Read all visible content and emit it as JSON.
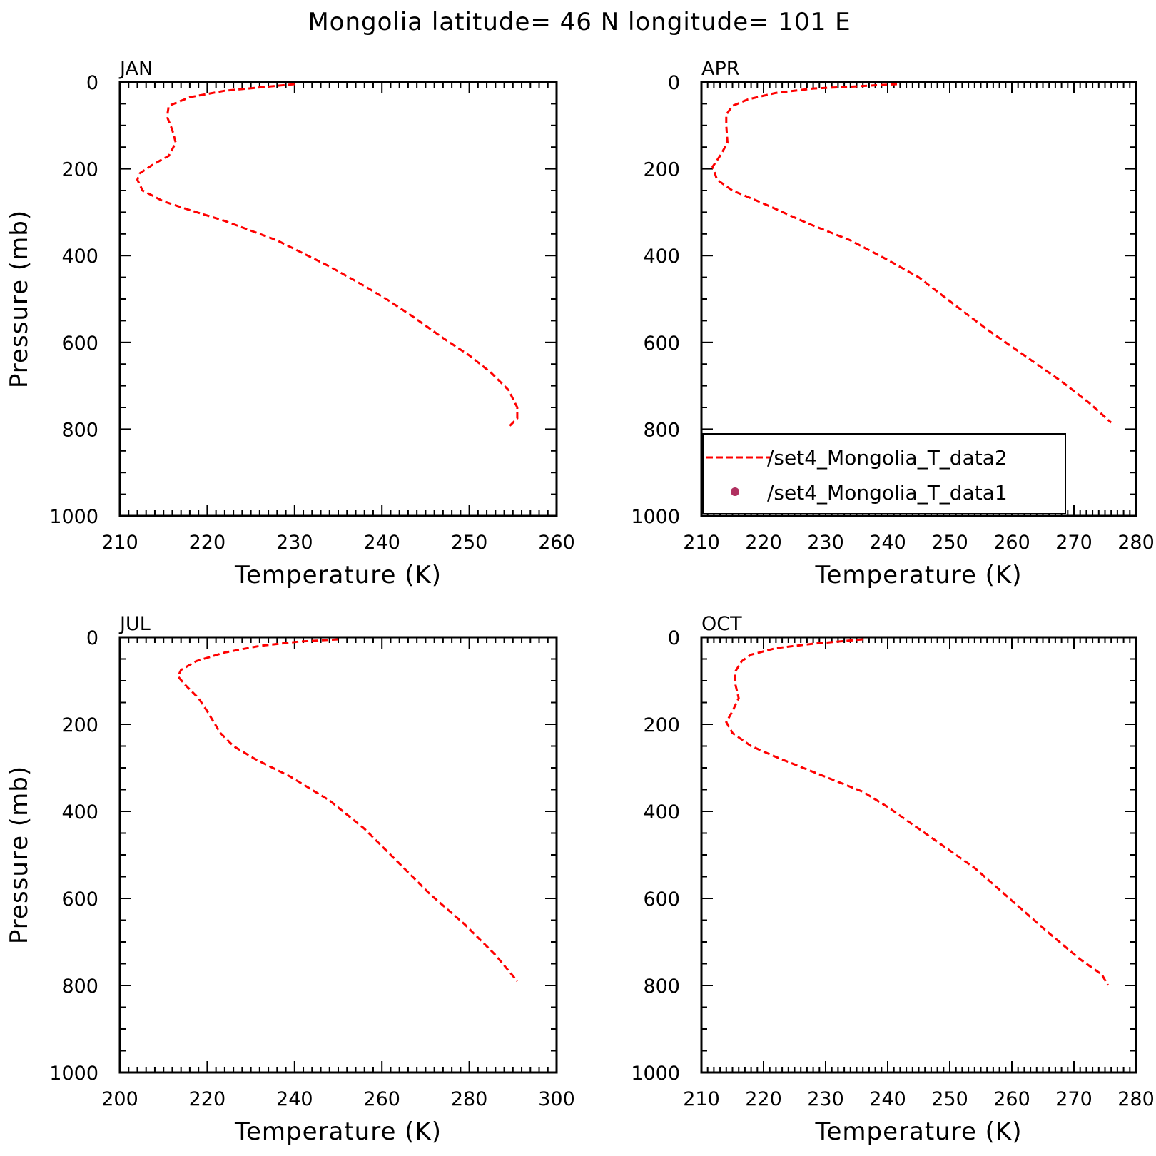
{
  "title": "Mongolia  latitude= 46 N longitude= 101 E",
  "colors": {
    "model_line": "#ff0000",
    "obs_marker": "#b03060",
    "axis": "#000000"
  },
  "legend": {
    "placement": "inside lower-left of APR panel",
    "entries": [
      {
        "label": "/set4_Mongolia_T_data2",
        "style": "dashed-line",
        "color": "#ff0000"
      },
      {
        "label": "/set4_Mongolia_T_data1",
        "style": "dot",
        "color": "#b03060"
      }
    ]
  },
  "chart_data": [
    {
      "type": "line",
      "panel": "JAN",
      "xlabel": "Temperature (K)",
      "ylabel": "Pressure (mb)",
      "xlim": [
        210,
        260
      ],
      "ylim": [
        1000,
        0
      ],
      "y_inverted": true,
      "xticks": [
        210,
        220,
        230,
        240,
        250,
        260
      ],
      "yticks": [
        0,
        200,
        400,
        600,
        800,
        1000
      ],
      "grid": false,
      "series": [
        {
          "name": "/set4_Mongolia_T_data2",
          "style": "dashed",
          "color": "#ff0000",
          "points": [
            [
              230.0,
              5
            ],
            [
              222.0,
              20
            ],
            [
              218.0,
              35
            ],
            [
              215.6,
              55
            ],
            [
              215.4,
              80
            ],
            [
              216.0,
              110
            ],
            [
              216.4,
              140
            ],
            [
              215.6,
              170
            ],
            [
              213.8,
              190
            ],
            [
              212.3,
              210
            ],
            [
              212.0,
              225
            ],
            [
              212.6,
              250
            ],
            [
              215.0,
              275
            ],
            [
              218.0,
              295
            ],
            [
              222.0,
              320
            ],
            [
              228.0,
              365
            ],
            [
              234.0,
              425
            ],
            [
              238.0,
              470
            ],
            [
              240.5,
              500
            ],
            [
              243.5,
              540
            ],
            [
              247.0,
              590
            ],
            [
              250.0,
              630
            ],
            [
              252.5,
              670
            ],
            [
              254.5,
              710
            ],
            [
              255.5,
              750
            ],
            [
              255.5,
              775
            ],
            [
              254.5,
              795
            ]
          ]
        },
        {
          "name": "/set4_Mongolia_T_data1",
          "style": "dot",
          "color": "#b03060",
          "points": []
        }
      ]
    },
    {
      "type": "line",
      "panel": "APR",
      "xlabel": "Temperature (K)",
      "ylabel": "",
      "xlim": [
        210,
        280
      ],
      "ylim": [
        1000,
        0
      ],
      "y_inverted": true,
      "xticks": [
        210,
        220,
        230,
        240,
        250,
        260,
        270,
        280
      ],
      "yticks": [
        0,
        200,
        400,
        600,
        800,
        1000
      ],
      "grid": false,
      "series": [
        {
          "name": "/set4_Mongolia_T_data2",
          "style": "dashed",
          "color": "#ff0000",
          "points": [
            [
              241.5,
              5
            ],
            [
              235.0,
              10
            ],
            [
              228.0,
              15
            ],
            [
              222.0,
              25
            ],
            [
              217.5,
              40
            ],
            [
              215.0,
              55
            ],
            [
              214.0,
              75
            ],
            [
              214.0,
              100
            ],
            [
              214.2,
              140
            ],
            [
              213.0,
              170
            ],
            [
              211.8,
              195
            ],
            [
              212.5,
              225
            ],
            [
              215.0,
              250
            ],
            [
              220.0,
              280
            ],
            [
              227.0,
              325
            ],
            [
              234.0,
              365
            ],
            [
              240.0,
              410
            ],
            [
              245.0,
              450
            ],
            [
              250.0,
              505
            ],
            [
              256.0,
              570
            ],
            [
              262.0,
              630
            ],
            [
              268.0,
              690
            ],
            [
              272.5,
              740
            ],
            [
              276.0,
              785
            ]
          ]
        },
        {
          "name": "/set4_Mongolia_T_data1",
          "style": "dot",
          "color": "#b03060",
          "points": []
        }
      ]
    },
    {
      "type": "line",
      "panel": "JUL",
      "xlabel": "Temperature (K)",
      "ylabel": "Pressure (mb)",
      "xlim": [
        200,
        300
      ],
      "ylim": [
        1000,
        0
      ],
      "y_inverted": true,
      "xticks": [
        200,
        220,
        240,
        260,
        280,
        300
      ],
      "yticks": [
        0,
        200,
        400,
        600,
        800,
        1000
      ],
      "grid": false,
      "series": [
        {
          "name": "/set4_Mongolia_T_data2",
          "style": "dashed",
          "color": "#ff0000",
          "points": [
            [
              250.0,
              5
            ],
            [
              241.0,
              10
            ],
            [
              232.0,
              20
            ],
            [
              224.0,
              35
            ],
            [
              217.5,
              55
            ],
            [
              214.0,
              75
            ],
            [
              213.3,
              90
            ],
            [
              215.0,
              110
            ],
            [
              218.0,
              140
            ],
            [
              220.0,
              170
            ],
            [
              221.5,
              195
            ],
            [
              223.0,
              220
            ],
            [
              226.0,
              250
            ],
            [
              231.0,
              280
            ],
            [
              239.0,
              320
            ],
            [
              248.0,
              375
            ],
            [
              256.0,
              440
            ],
            [
              264.0,
              520
            ],
            [
              271.0,
              590
            ],
            [
              279.0,
              660
            ],
            [
              286.0,
              730
            ],
            [
              291.0,
              790
            ]
          ]
        },
        {
          "name": "/set4_Mongolia_T_data1",
          "style": "dot",
          "color": "#b03060",
          "points": []
        }
      ]
    },
    {
      "type": "line",
      "panel": "OCT",
      "xlabel": "Temperature (K)",
      "ylabel": "",
      "xlim": [
        210,
        280
      ],
      "ylim": [
        1000,
        0
      ],
      "y_inverted": true,
      "xticks": [
        210,
        220,
        230,
        240,
        250,
        260,
        270,
        280
      ],
      "yticks": [
        0,
        200,
        400,
        600,
        800,
        1000
      ],
      "grid": false,
      "series": [
        {
          "name": "/set4_Mongolia_T_data2",
          "style": "dashed",
          "color": "#ff0000",
          "points": [
            [
              236.0,
              5
            ],
            [
              228.0,
              15
            ],
            [
              222.0,
              25
            ],
            [
              218.0,
              40
            ],
            [
              216.5,
              55
            ],
            [
              215.4,
              80
            ],
            [
              215.5,
              110
            ],
            [
              216.0,
              140
            ],
            [
              215.0,
              170
            ],
            [
              214.0,
              195
            ],
            [
              215.0,
              220
            ],
            [
              218.0,
              250
            ],
            [
              222.0,
              275
            ],
            [
              229.0,
              315
            ],
            [
              236.0,
              355
            ],
            [
              240.0,
              390
            ],
            [
              245.0,
              440
            ],
            [
              250.0,
              490
            ],
            [
              254.0,
              530
            ],
            [
              258.0,
              580
            ],
            [
              262.0,
              630
            ],
            [
              266.0,
              680
            ],
            [
              271.0,
              740
            ],
            [
              274.5,
              775
            ],
            [
              275.5,
              800
            ]
          ]
        },
        {
          "name": "/set4_Mongolia_T_data1",
          "style": "dot",
          "color": "#b03060",
          "points": []
        }
      ]
    }
  ]
}
